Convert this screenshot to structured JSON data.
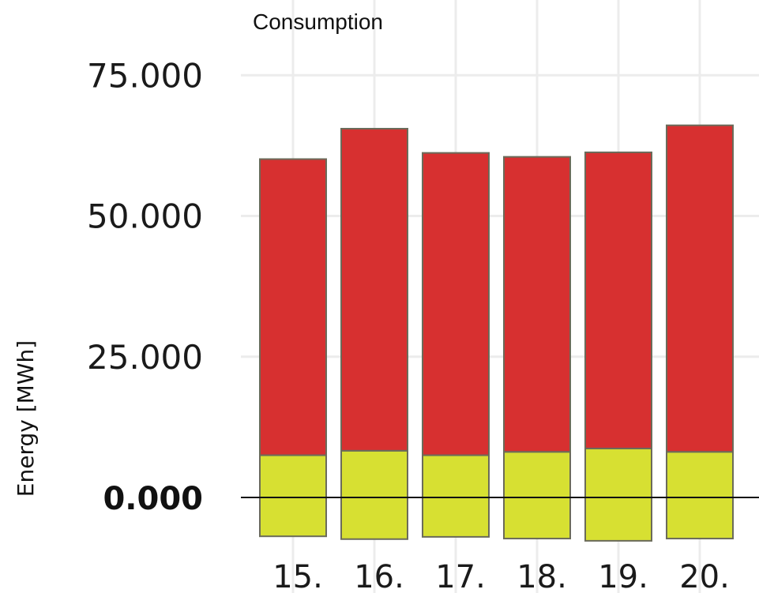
{
  "chart_data": {
    "type": "bar",
    "title": "Consumption",
    "ylabel": "Energy [MWh]",
    "xlabel": "",
    "categories": [
      "15.",
      "16.",
      "17.",
      "18.",
      "19.",
      "20."
    ],
    "series": [
      {
        "color": "#d7e032",
        "values": [
          7.5,
          8.3,
          7.5,
          8.1,
          8.7,
          8.1
        ]
      },
      {
        "color": "#d73030",
        "values": [
          52.6,
          57.2,
          53.7,
          52.4,
          52.6,
          58.0
        ]
      },
      {
        "color": "#d7e032",
        "values": [
          -6.9,
          -7.4,
          -7.0,
          -7.3,
          -7.7,
          -7.3
        ]
      }
    ],
    "y_tick_labels": [
      "0.000",
      "25.000",
      "50.000",
      "75.000"
    ],
    "y_ticks": [
      0,
      25,
      50,
      75
    ],
    "ylim": [
      -9,
      80
    ],
    "grid": true,
    "legend": "none",
    "zero_line": true
  }
}
